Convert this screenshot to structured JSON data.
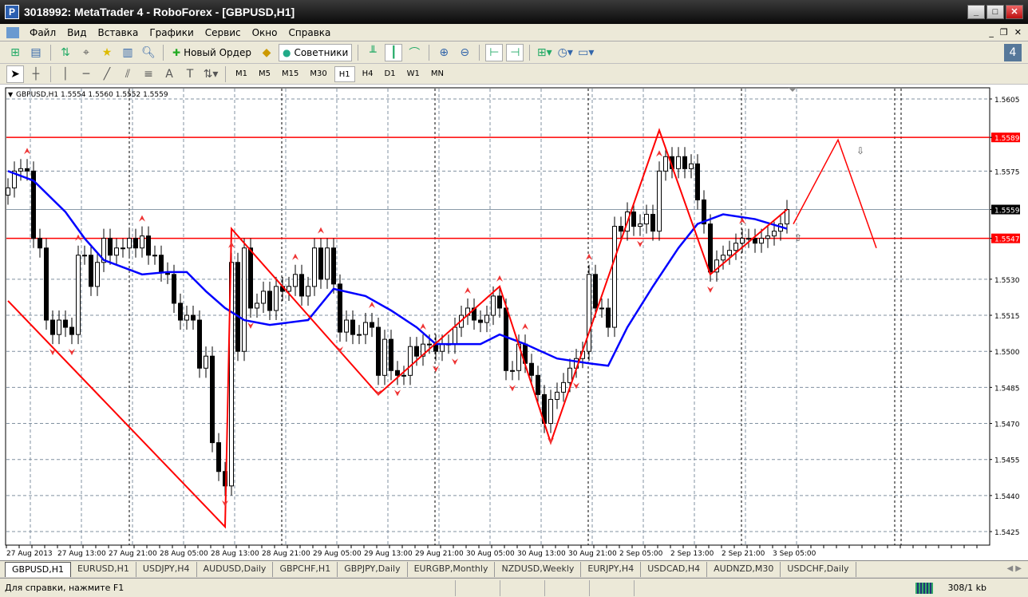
{
  "window": {
    "title": "3018992: MetaTrader 4 - RoboForex - [GBPUSD,H1]",
    "controls": [
      "_",
      "□",
      "✕"
    ]
  },
  "menu": [
    "Файл",
    "Вид",
    "Вставка",
    "Графики",
    "Сервис",
    "Окно",
    "Справка"
  ],
  "toolbar": {
    "new_order": "Новый Ордер",
    "experts": "Советники"
  },
  "timeframes": [
    "M1",
    "M5",
    "M15",
    "M30",
    "H1",
    "H4",
    "D1",
    "W1",
    "MN"
  ],
  "active_timeframe": "H1",
  "chart_header": "GBPUSD,H1  1.5554 1.5560 1.5552 1.5559",
  "tabs": [
    "GBPUSD,H1",
    "EURUSD,H1",
    "USDJPY,H4",
    "AUDUSD,Daily",
    "GBPCHF,H1",
    "GBPJPY,Daily",
    "EURGBP,Monthly",
    "NZDUSD,Weekly",
    "EURJPY,H4",
    "USDCAD,H4",
    "AUDNZD,M30",
    "USDCHF,Daily"
  ],
  "status": {
    "help": "Для справки, нажмите F1",
    "traffic": "308/1 kb"
  },
  "chart_data": {
    "type": "candlestick",
    "symbol": "GBPUSD",
    "timeframe": "H1",
    "ylim": [
      1.542,
      1.5612
    ],
    "y_ticks": [
      "1.5605",
      "1.5589",
      "1.5575",
      "1.5559",
      "1.5547",
      "1.5530",
      "1.5515",
      "1.5500",
      "1.5485",
      "1.5470",
      "1.5455",
      "1.5440",
      "1.5425"
    ],
    "x_ticks": [
      "27 Aug 2013",
      "27 Aug 13:00",
      "27 Aug 21:00",
      "28 Aug 05:00",
      "28 Aug 13:00",
      "28 Aug 21:00",
      "29 Aug 05:00",
      "29 Aug 13:00",
      "29 Aug 21:00",
      "30 Aug 05:00",
      "30 Aug 13:00",
      "30 Aug 21:00",
      "2 Sep 05:00",
      "2 Sep 13:00",
      "2 Sep 21:00",
      "3 Sep 05:00"
    ],
    "closes": [
      1.5568,
      1.5575,
      1.5576,
      1.5575,
      1.5547,
      1.5543,
      1.5513,
      1.5507,
      1.5513,
      1.551,
      1.5507,
      1.554,
      1.554,
      1.5527,
      1.5537,
      1.5547,
      1.554,
      1.5543,
      1.5543,
      1.5547,
      1.5543,
      1.5548,
      1.554,
      1.554,
      1.5533,
      1.5532,
      1.552,
      1.5513,
      1.5515,
      1.5513,
      1.5493,
      1.5498,
      1.5462,
      1.545,
      1.5444,
      1.5537,
      1.55,
      1.5543,
      1.5518,
      1.552,
      1.5525,
      1.5517,
      1.5527,
      1.5525,
      1.5527,
      1.5532,
      1.5523,
      1.5527,
      1.5543,
      1.553,
      1.5543,
      1.5528,
      1.5508,
      1.5513,
      1.5507,
      1.5507,
      1.5512,
      1.551,
      1.549,
      1.5505,
      1.5492,
      1.549,
      1.549,
      1.5502,
      1.5498,
      1.5503,
      1.5503,
      1.55,
      1.5503,
      1.5503,
      1.551,
      1.5515,
      1.5518,
      1.5513,
      1.5512,
      1.5515,
      1.5523,
      1.5518,
      1.5492,
      1.5492,
      1.5503,
      1.5495,
      1.549,
      1.5482,
      1.547,
      1.548,
      1.5483,
      1.5487,
      1.5493,
      1.5497,
      1.55,
      1.5532,
      1.5518,
      1.5518,
      1.551,
      1.5552,
      1.555,
      1.5558,
      1.5552,
      1.5553,
      1.5557,
      1.555,
      1.5575,
      1.5581,
      1.5576,
      1.5581,
      1.5576,
      1.5578,
      1.5563,
      1.5553,
      1.5533,
      1.5538,
      1.554,
      1.5542,
      1.5545,
      1.5547,
      1.5547,
      1.5545,
      1.5547,
      1.5548,
      1.555,
      1.5553,
      1.5559
    ],
    "moving_average": [
      [
        0,
        1.5575
      ],
      [
        4,
        1.5571
      ],
      [
        9,
        1.5558
      ],
      [
        12,
        1.5547
      ],
      [
        15,
        1.5538
      ],
      [
        21,
        1.5532
      ],
      [
        25,
        1.5533
      ],
      [
        28,
        1.5533
      ],
      [
        31,
        1.5525
      ],
      [
        34,
        1.5518
      ],
      [
        37,
        1.5513
      ],
      [
        41,
        1.5511
      ],
      [
        47,
        1.5513
      ],
      [
        51,
        1.5526
      ],
      [
        56,
        1.5523
      ],
      [
        60,
        1.5517
      ],
      [
        64,
        1.551
      ],
      [
        67,
        1.5503
      ],
      [
        74,
        1.5503
      ],
      [
        77,
        1.5507
      ],
      [
        81,
        1.5503
      ],
      [
        86,
        1.5497
      ],
      [
        91,
        1.5495
      ],
      [
        94,
        1.5494
      ],
      [
        97,
        1.551
      ],
      [
        101,
        1.5527
      ],
      [
        105,
        1.5543
      ],
      [
        108,
        1.5553
      ],
      [
        112,
        1.5557
      ],
      [
        117,
        1.5555
      ],
      [
        122,
        1.5551
      ]
    ],
    "zigzag": [
      [
        0,
        1.5521
      ],
      [
        34,
        1.5427
      ],
      [
        35,
        1.5551
      ],
      [
        58,
        1.5482
      ],
      [
        77,
        1.5527
      ],
      [
        85,
        1.5462
      ],
      [
        102,
        1.5592
      ],
      [
        110,
        1.5532
      ],
      [
        122,
        1.5559
      ]
    ],
    "forecast": [
      [
        123,
        1.5553
      ],
      [
        130,
        1.5588
      ],
      [
        136,
        1.5543
      ]
    ],
    "fractals_up": [
      3,
      11,
      21,
      35,
      45,
      49,
      57,
      65,
      72,
      77,
      81,
      91,
      102,
      115
    ],
    "fractals_down": [
      7,
      10,
      34,
      38,
      52,
      58,
      61,
      67,
      70,
      79,
      85,
      89,
      99,
      110
    ],
    "levels": [
      {
        "price": "1.5589",
        "color": "#ff0000"
      },
      {
        "price": "1.5547",
        "color": "#ff0000"
      }
    ],
    "current_price": "1.5559",
    "colors": {
      "ma": "#0000ff",
      "zigzag": "#ff0000",
      "bull": "#ffffff",
      "bear": "#000000"
    }
  }
}
